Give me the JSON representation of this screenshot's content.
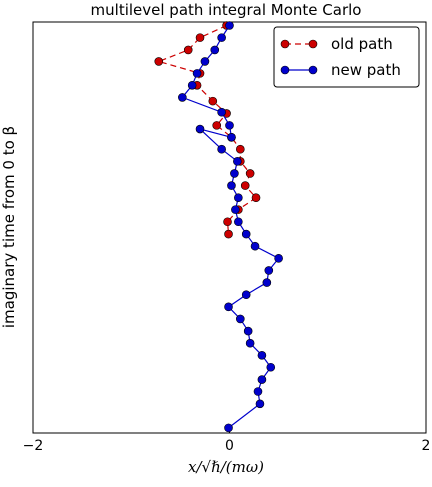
{
  "chart_data": {
    "type": "line",
    "title": "multilevel path integral Monte Carlo",
    "xlabel": "x/√ℏ/(mω)",
    "ylabel": "imaginary time from 0 to β",
    "xlim": [
      -2,
      2
    ],
    "ylim": [
      0,
      1
    ],
    "x_ticks": [
      "−2",
      "0",
      "2"
    ],
    "y_ticks": [],
    "grid": false,
    "legend_position": "top-right",
    "series": [
      {
        "name": "old path",
        "color": "#cc0000",
        "line_style": "dashed",
        "marker": "circle",
        "x": [
          -0.03,
          -0.3,
          -0.42,
          -0.72,
          -0.3,
          -0.33,
          -0.17,
          -0.03,
          -0.13,
          0.02,
          0.11,
          0.11,
          0.21,
          0.16,
          0.27,
          0.09,
          -0.02,
          -0.01
        ],
        "y": [
          0.9915,
          0.962,
          0.932,
          0.904,
          0.875,
          0.846,
          0.8075,
          0.7775,
          0.7485,
          0.7195,
          0.6905,
          0.661,
          0.6315,
          0.602,
          0.5725,
          0.5435,
          0.514,
          0.484
        ]
      },
      {
        "name": "new path",
        "color": "#0000cc",
        "line_style": "solid",
        "marker": "circle",
        "x": [
          0.0,
          -0.08,
          -0.15,
          -0.25,
          -0.33,
          -0.38,
          -0.48,
          -0.08,
          0.0,
          0.02,
          -0.3,
          -0.08,
          0.08,
          0.05,
          0.02,
          0.09,
          0.06,
          0.09,
          0.17,
          0.26,
          0.5,
          0.4,
          0.38,
          0.17,
          -0.01,
          0.11,
          0.19,
          0.21,
          0.33,
          0.42,
          0.33,
          0.29,
          0.31,
          -0.01
        ],
        "y": [
          0.9915,
          0.962,
          0.932,
          0.904,
          0.875,
          0.846,
          0.8165,
          0.7805,
          0.7485,
          0.7195,
          0.7395,
          0.6905,
          0.661,
          0.6315,
          0.602,
          0.5725,
          0.5435,
          0.514,
          0.484,
          0.4545,
          0.425,
          0.3955,
          0.366,
          0.3365,
          0.307,
          0.2775,
          0.248,
          0.2185,
          0.189,
          0.16,
          0.13,
          0.101,
          0.071,
          0.0125
        ]
      }
    ]
  }
}
